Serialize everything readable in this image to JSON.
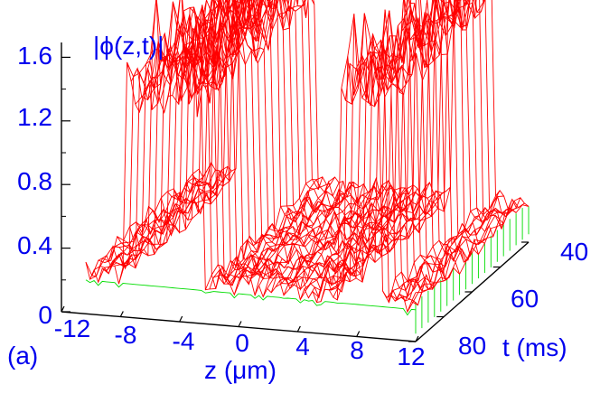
{
  "chart_data": {
    "type": "surface3d",
    "panel_label": "(a)",
    "zlabel": "|ϕ(z,t)|",
    "xlabel": "z (μm)",
    "ylabel": "t (ms)",
    "x_ticks": [
      "-12",
      "-8",
      "-4",
      "0",
      "4",
      "8",
      "12"
    ],
    "y_ticks": [
      "40",
      "60",
      "80"
    ],
    "z_ticks": [
      "0",
      "0.4",
      "0.8",
      "1.2",
      "1.6"
    ],
    "xlim": [
      -12,
      12
    ],
    "ylim": [
      35,
      85
    ],
    "zlim": [
      0,
      1.8
    ],
    "background_level": 0.25,
    "peaks": [
      {
        "z_from": -9.0,
        "z_to": -3.5,
        "level": 1.45
      },
      {
        "z_from": 6.5,
        "z_to": 9.5,
        "level": 1.55
      }
    ],
    "colors": {
      "surface_top": "#ff0000",
      "surface_underside": "#00dd00",
      "text": "#0000ee",
      "axes": "#000000"
    }
  }
}
